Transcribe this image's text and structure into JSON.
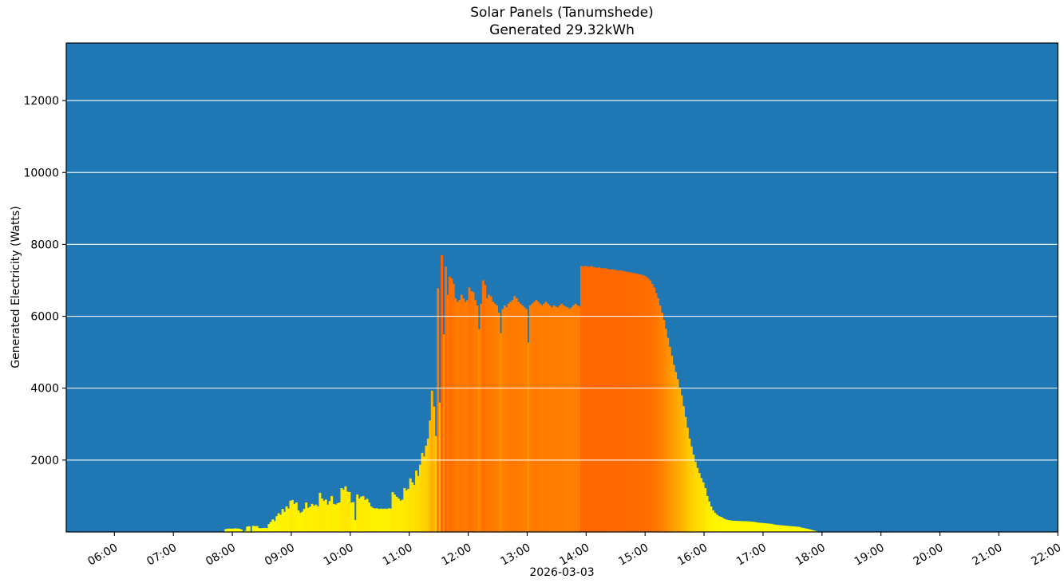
{
  "chart_data": {
    "type": "bar",
    "title": "Solar Panels (Tanumshede)",
    "subtitle": "Generated 29.32kWh",
    "xlabel": "2026-03-03",
    "ylabel": "Generated Electricity (Watts)",
    "legend": "none",
    "grid": "horizontal-white-lines-over-bars",
    "x_axis": {
      "start": "05:11",
      "end": "22:00",
      "tick_labels": [
        "06:00",
        "07:00",
        "08:00",
        "09:00",
        "10:00",
        "11:00",
        "12:00",
        "13:00",
        "14:00",
        "15:00",
        "16:00",
        "17:00",
        "18:00",
        "19:00",
        "20:00",
        "21:00",
        "22:00"
      ],
      "tick_rotation_deg": -30
    },
    "y_axis": {
      "min": 0,
      "max": 13600,
      "tick_values": [
        2000,
        4000,
        6000,
        8000,
        10000,
        12000
      ]
    },
    "colors": {
      "figure_background": "#ffffff",
      "plot_background": "#1f77b4",
      "grid": "#ffffff",
      "spine": "#000000",
      "bar_gradient_low": "#ffff00",
      "bar_gradient_high": "#ff6000",
      "color_value_max": 12400
    },
    "series": {
      "name": "generated-power-watts",
      "unit": "W",
      "start_time": "07:52",
      "interval_minutes": 2,
      "values": [
        80,
        90,
        95,
        90,
        95,
        100,
        95,
        90,
        70,
        0,
        30,
        150,
        160,
        0,
        170,
        160,
        165,
        110,
        105,
        110,
        115,
        110,
        220,
        280,
        350,
        300,
        440,
        520,
        480,
        640,
        560,
        710,
        650,
        870,
        890,
        780,
        820,
        600,
        530,
        560,
        640,
        820,
        670,
        700,
        780,
        730,
        760,
        710,
        1090,
        930,
        870,
        900,
        760,
        860,
        1000,
        780,
        760,
        800,
        820,
        1220,
        1180,
        1270,
        1120,
        1110,
        820,
        830,
        330,
        1040,
        930,
        980,
        1000,
        890,
        920,
        820,
        710,
        670,
        650,
        660,
        640,
        650,
        645,
        650,
        640,
        660,
        650,
        1110,
        1040,
        980,
        930,
        870,
        900,
        1220,
        1160,
        1200,
        1490,
        1380,
        1310,
        1710,
        1560,
        1870,
        2200,
        2100,
        2400,
        2600,
        3100,
        3930,
        3490,
        2670,
        6780,
        3600,
        7700,
        5500,
        7380,
        6600,
        7100,
        7050,
        6900,
        6500,
        6400,
        6450,
        6600,
        6500,
        6400,
        6450,
        6800,
        6700,
        6670,
        6450,
        6300,
        5640,
        6350,
        7000,
        6870,
        6500,
        6600,
        6550,
        6400,
        6350,
        6300,
        6100,
        5530,
        6200,
        6300,
        6250,
        6350,
        6400,
        6450,
        6560,
        6500,
        6400,
        6350,
        6300,
        6250,
        6200,
        5270,
        6300,
        6350,
        6400,
        6450,
        6400,
        6350,
        6300,
        6350,
        6400,
        6350,
        6300,
        6250,
        6300,
        6270,
        6250,
        6300,
        6350,
        6300,
        6270,
        6250,
        6200,
        6250,
        6300,
        6350,
        6300,
        6270,
        7400,
        7380,
        7400,
        7390,
        7380,
        7400,
        7370,
        7360,
        7350,
        7360,
        7340,
        7330,
        7340,
        7320,
        7310,
        7300,
        7310,
        7290,
        7280,
        7270,
        7280,
        7260,
        7250,
        7240,
        7230,
        7220,
        7210,
        7200,
        7190,
        7170,
        7160,
        7150,
        7130,
        7100,
        7050,
        7000,
        6900,
        6800,
        6650,
        6500,
        6300,
        6100,
        5900,
        5650,
        5400,
        5150,
        4900,
        4650,
        4450,
        4250,
        4000,
        3800,
        3500,
        3200,
        2900,
        2600,
        2380,
        2150,
        1950,
        1780,
        1640,
        1500,
        1380,
        1220,
        1000,
        850,
        710,
        600,
        530,
        480,
        440,
        420,
        390,
        360,
        340,
        330,
        320,
        315,
        310,
        310,
        305,
        305,
        300,
        300,
        300,
        295,
        290,
        285,
        280,
        270,
        260,
        255,
        250,
        245,
        240,
        235,
        230,
        225,
        210,
        200,
        195,
        190,
        185,
        180,
        175,
        170,
        165,
        160,
        155,
        150,
        145,
        140,
        120,
        110,
        100,
        90,
        75,
        60,
        45,
        30,
        15,
        0,
        0
      ]
    }
  }
}
